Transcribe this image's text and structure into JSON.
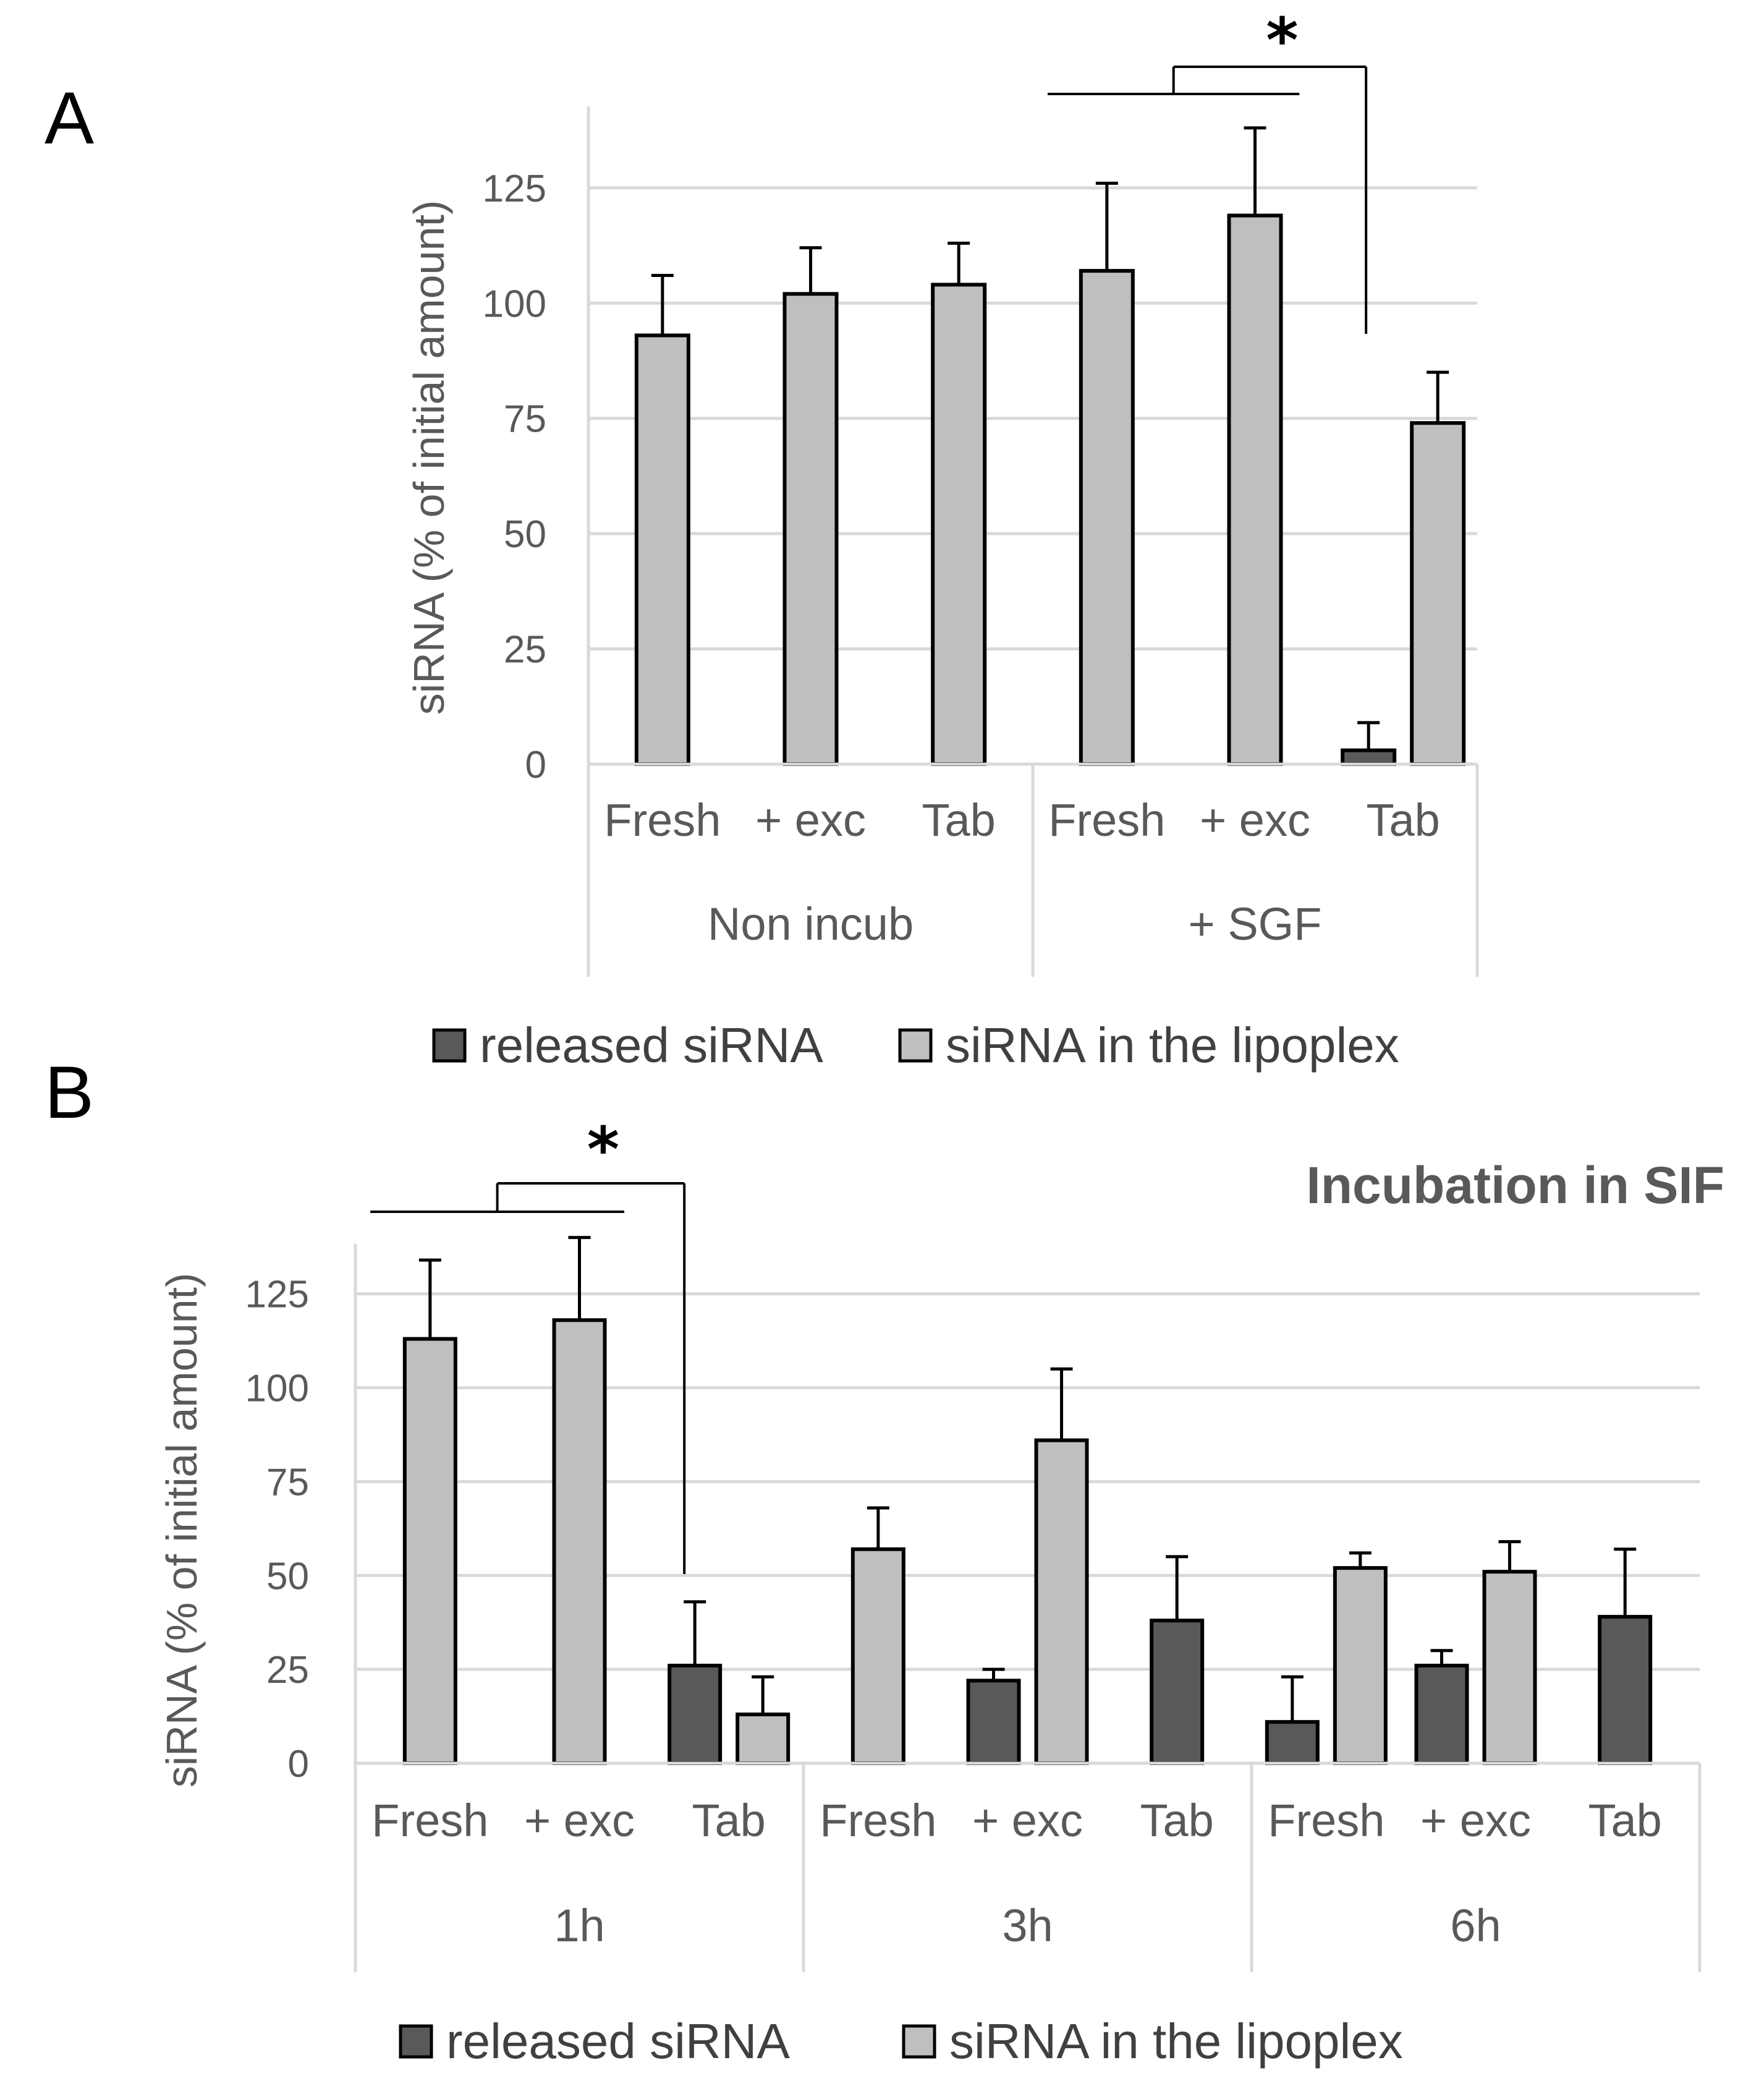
{
  "legend": {
    "released": "released siRNA",
    "lipoplex": "siRNA in the lipoplex"
  },
  "colors": {
    "released": "#595959",
    "lipoplex": "#bfbfbf",
    "outline": "#000000",
    "grid": "#d9d9d9",
    "axis_text": "#595959"
  },
  "significance_marker": "*",
  "chart_data": [
    {
      "panel": "A",
      "type": "bar",
      "title": "",
      "ylabel": "siRNA (% of initial amount)",
      "ylim": [
        0,
        140
      ],
      "yticks": [
        0,
        25,
        50,
        75,
        100,
        125
      ],
      "ytick_labels": [
        "0",
        "25",
        "50",
        "75",
        "100",
        "125"
      ],
      "groups": [
        {
          "label": "Non incub",
          "categories": [
            "Fresh",
            "+ exc",
            "Tab"
          ]
        },
        {
          "label": "+ SGF",
          "categories": [
            "Fresh",
            "+ exc",
            "Tab"
          ]
        }
      ],
      "series": [
        {
          "name": "released siRNA",
          "values": [
            null,
            null,
            null,
            null,
            null,
            3
          ],
          "errors": [
            null,
            null,
            null,
            null,
            null,
            6
          ]
        },
        {
          "name": "siRNA in the lipoplex",
          "values": [
            93,
            102,
            104,
            107,
            119,
            74
          ],
          "errors": [
            13,
            10,
            9,
            19,
            19,
            11
          ]
        }
      ],
      "significance": {
        "marker": "*",
        "from": [
          3,
          4
        ],
        "to": 5
      }
    },
    {
      "panel": "B",
      "type": "bar",
      "title": "Incubation in SIF",
      "ylabel": "siRNA (% of initial amount)",
      "ylim": [
        0,
        135
      ],
      "yticks": [
        0,
        25,
        50,
        75,
        100,
        125
      ],
      "ytick_labels": [
        "0",
        "25",
        "50",
        "75",
        "100",
        "125"
      ],
      "groups": [
        {
          "label": "1h",
          "categories": [
            "Fresh",
            "+ exc",
            "Tab"
          ]
        },
        {
          "label": "3h",
          "categories": [
            "Fresh",
            "+ exc",
            "Tab"
          ]
        },
        {
          "label": "6h",
          "categories": [
            "Fresh",
            "+ exc",
            "Tab"
          ]
        }
      ],
      "series": [
        {
          "name": "released siRNA",
          "values": [
            null,
            null,
            26,
            null,
            22,
            38,
            11,
            26,
            39
          ],
          "errors": [
            null,
            null,
            17,
            null,
            3,
            17,
            12,
            4,
            18
          ]
        },
        {
          "name": "siRNA in the lipoplex",
          "values": [
            113,
            118,
            13,
            57,
            86,
            null,
            52,
            51,
            null
          ],
          "errors": [
            21,
            22,
            10,
            11,
            19,
            null,
            4,
            8,
            null
          ]
        }
      ],
      "significance": {
        "marker": "*",
        "from": [
          0,
          1
        ],
        "to": 2
      }
    }
  ]
}
